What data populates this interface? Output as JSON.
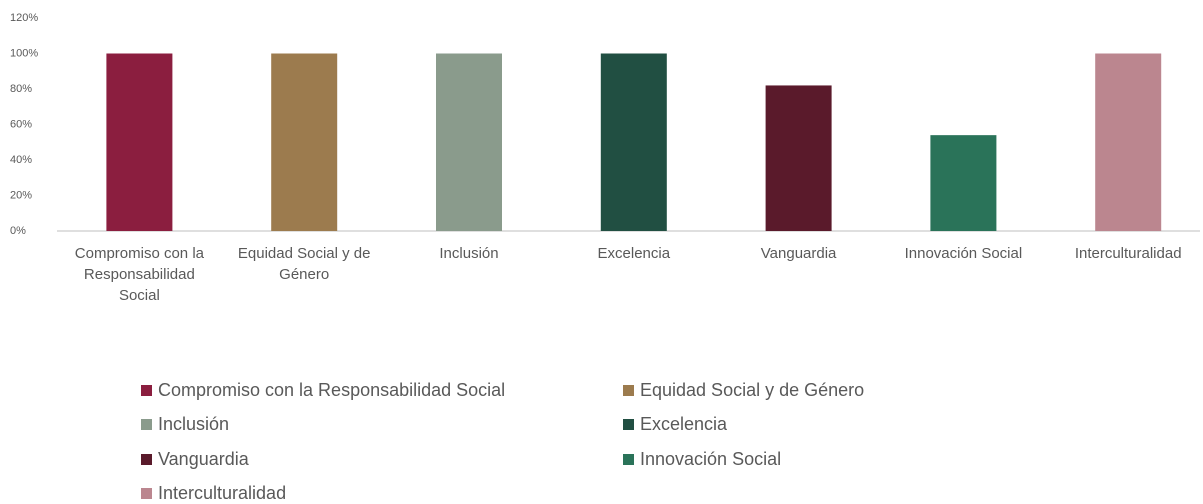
{
  "chart_data": {
    "type": "bar",
    "categories": [
      "Compromiso con la Responsabilidad Social",
      "Equidad Social y de Género",
      "Inclusión",
      "Excelencia",
      "Vanguardia",
      "Innovación Social",
      "Interculturalidad"
    ],
    "values": [
      100,
      100,
      100,
      100,
      82,
      54,
      100
    ],
    "colors": [
      "#8b1e3f",
      "#9c7b4e",
      "#8a9b8c",
      "#214f42",
      "#5a1a2b",
      "#2a7359",
      "#bb868f"
    ],
    "ylim": [
      0,
      120
    ],
    "yticks": [
      {
        "value": 0,
        "label": "0%"
      },
      {
        "value": 20,
        "label": "20%"
      },
      {
        "value": 40,
        "label": "40%"
      },
      {
        "value": 60,
        "label": "60%"
      },
      {
        "value": 80,
        "label": "80%"
      },
      {
        "value": 100,
        "label": "100%"
      },
      {
        "value": 120,
        "label": "120%"
      }
    ],
    "grid": false
  }
}
